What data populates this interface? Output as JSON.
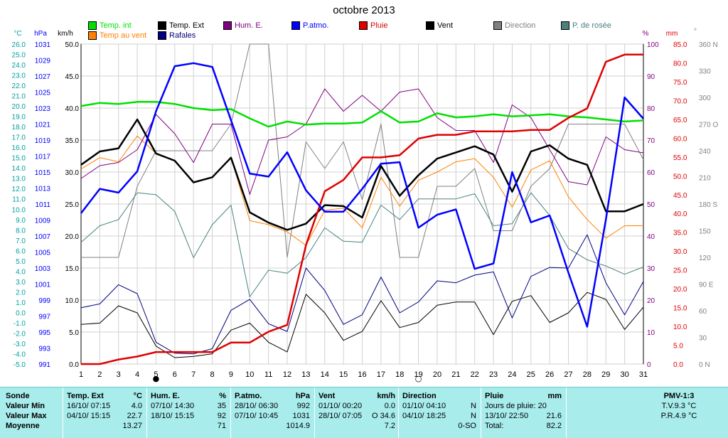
{
  "title": "octobre 2013",
  "axis_units": {
    "temp": "°C",
    "press": "hPa",
    "wind": "km/h",
    "hum": "%",
    "rain": "mm",
    "dir": "°"
  },
  "legend": [
    {
      "label": "Temp. int",
      "color": "#00e000"
    },
    {
      "label": "Temp. Ext",
      "color": "#000000"
    },
    {
      "label": "Hum. E.",
      "color": "#800080"
    },
    {
      "label": "P.atmo.",
      "color": "#0000ff"
    },
    {
      "label": "Pluie",
      "color": "#e00000"
    },
    {
      "label": "Vent",
      "color": "#000000"
    },
    {
      "label": "Direction",
      "color": "#808080"
    },
    {
      "label": "P. de rosée",
      "color": "#4a8080"
    },
    {
      "label": "Temp au vent",
      "color": "#ff8000"
    },
    {
      "label": "Rafales",
      "color": "#000080"
    }
  ],
  "chart_data": {
    "type": "line",
    "title": "octobre 2013",
    "x": [
      1,
      2,
      3,
      4,
      5,
      6,
      7,
      8,
      9,
      10,
      11,
      12,
      13,
      14,
      15,
      16,
      17,
      18,
      19,
      20,
      21,
      22,
      23,
      24,
      25,
      26,
      27,
      28,
      29,
      30,
      31
    ],
    "axes": {
      "temp": {
        "label": "°C",
        "range": [
          -5,
          26
        ],
        "ticks": [
          "26.0",
          "25.0",
          "24.0",
          "23.0",
          "22.0",
          "21.0",
          "20.0",
          "19.0",
          "18.0",
          "17.0",
          "16.0",
          "15.0",
          "14.0",
          "13.0",
          "12.0",
          "11.0",
          "10.0",
          "9.0",
          "8.0",
          "7.0",
          "6.0",
          "5.0",
          "4.0",
          "3.0",
          "2.0",
          "1.0",
          "0.0",
          "-1.0",
          "-2.0",
          "-3.0",
          "-4.0",
          "-5.0"
        ]
      },
      "press": {
        "label": "hPa",
        "range": [
          991,
          1033
        ],
        "ticks": [
          "1031",
          "1029",
          "1027",
          "1025",
          "1023",
          "1021",
          "1019",
          "1017",
          "1015",
          "1013",
          "1011",
          "1009",
          "1007",
          "1005",
          "1003",
          "1001",
          "999",
          "997",
          "995",
          "993",
          "991"
        ]
      },
      "wind": {
        "label": "km/h",
        "range": [
          0,
          50
        ],
        "ticks": [
          "50.0",
          "45.0",
          "40.0",
          "35.0",
          "30.0",
          "25.0",
          "20.0",
          "15.0",
          "10.0",
          "5.0",
          "0.0"
        ]
      },
      "hum": {
        "label": "%",
        "range": [
          0,
          100
        ],
        "ticks": [
          "100",
          "90",
          "80",
          "70",
          "60",
          "50",
          "40",
          "30",
          "20",
          "10",
          "0"
        ]
      },
      "rain": {
        "label": "mm",
        "range": [
          0,
          85
        ],
        "ticks": [
          "85.0",
          "80.0",
          "75.0",
          "70.0",
          "65.0",
          "60.0",
          "55.0",
          "50.0",
          "45.0",
          "40.0",
          "35.0",
          "30.0",
          "25.0",
          "20.0",
          "15.0",
          "10.0",
          "5.0",
          "0.0"
        ]
      },
      "dir": {
        "label": "°",
        "range": [
          0,
          360
        ],
        "ticks": [
          "360 N",
          "330",
          "300",
          "270 O",
          "240",
          "210",
          "180 S",
          "150",
          "120",
          "90 E",
          "60",
          "30",
          "0 N"
        ]
      }
    },
    "moon_markers": [
      {
        "day": 5,
        "symbol": "●"
      },
      {
        "day": 19,
        "symbol": "○"
      }
    ],
    "series": [
      {
        "name": "Temp. int",
        "axis": "temp",
        "color": "#00e000",
        "width": 2.5,
        "values": [
          20.0,
          20.3,
          20.2,
          20.4,
          20.4,
          20.2,
          19.8,
          19.6,
          19.7,
          18.8,
          18.0,
          18.5,
          18.2,
          18.3,
          18.3,
          18.4,
          19.5,
          18.4,
          18.5,
          19.3,
          18.9,
          19.0,
          19.2,
          19.0,
          19.1,
          19.2,
          19.0,
          18.9,
          18.7,
          18.5,
          18.6
        ]
      },
      {
        "name": "Temp. Ext",
        "axis": "temp",
        "color": "#000000",
        "width": 2.5,
        "values": [
          14.3,
          15.6,
          15.9,
          18.7,
          15.4,
          14.7,
          12.6,
          13.1,
          15.0,
          9.7,
          8.7,
          8.0,
          8.6,
          10.4,
          10.3,
          9.2,
          14.2,
          11.3,
          13.3,
          14.9,
          15.5,
          16.1,
          15.3,
          11.7,
          15.6,
          16.2,
          14.9,
          14.3,
          9.8,
          9.8,
          10.5
        ]
      },
      {
        "name": "Temp au vent",
        "axis": "temp",
        "color": "#ff8000",
        "width": 1,
        "values": [
          13.9,
          15.0,
          14.6,
          17.1,
          15.4,
          14.7,
          12.6,
          13.1,
          15.0,
          8.9,
          8.5,
          7.8,
          6.5,
          9.9,
          10.1,
          8.2,
          13.1,
          10.3,
          12.8,
          13.6,
          14.6,
          14.9,
          13.1,
          10.2,
          13.8,
          14.7,
          11.2,
          9.0,
          7.2,
          8.4,
          8.4
        ]
      },
      {
        "name": "P. de rosée",
        "axis": "temp",
        "color": "#4a8080",
        "width": 1,
        "values": [
          6.8,
          8.4,
          9.0,
          11.6,
          11.4,
          9.8,
          5.3,
          8.5,
          10.4,
          1.5,
          4.1,
          3.8,
          5.3,
          8.2,
          6.9,
          6.8,
          10.4,
          9.0,
          11.0,
          11.0,
          11.0,
          11.5,
          8.4,
          8.6,
          11.6,
          9.4,
          6.2,
          5.1,
          4.5,
          3.7,
          4.4
        ]
      },
      {
        "name": "Hum. E.",
        "axis": "hum",
        "color": "#800080",
        "width": 1,
        "values": [
          58,
          62,
          63,
          67,
          78,
          72,
          63,
          75,
          75,
          53,
          70,
          71,
          75,
          86,
          79,
          84,
          79,
          85,
          86,
          77,
          73,
          73,
          63,
          81,
          77,
          67,
          57,
          56,
          71,
          67,
          66
        ]
      },
      {
        "name": "P.atmo.",
        "axis": "press",
        "color": "#0000ff",
        "width": 2.5,
        "values": [
          1010.8,
          1014.0,
          1013.5,
          1016.3,
          1024.2,
          1030.1,
          1030.5,
          1030.0,
          1023.0,
          1016.0,
          1015.6,
          1018.8,
          1013.8,
          1011.0,
          1011.0,
          1014.0,
          1017.3,
          1017.5,
          1008.9,
          1010.6,
          1011.3,
          1003.5,
          1004.2,
          1016.2,
          1009.6,
          1010.5,
          1003.0,
          995.9,
          1010.0,
          1026.0,
          1023.2
        ]
      },
      {
        "name": "Pluie",
        "axis": "rain",
        "color": "#e00000",
        "width": 2.5,
        "values": [
          0.0,
          0.0,
          1.2,
          2.0,
          3.2,
          3.2,
          3.2,
          3.2,
          5.7,
          5.7,
          8.6,
          10.4,
          31.6,
          45.9,
          48.9,
          54.9,
          54.9,
          55.5,
          59.9,
          60.9,
          60.9,
          61.8,
          61.8,
          61.8,
          62.2,
          62.2,
          65.4,
          67.9,
          80.3,
          82.2,
          82.2
        ]
      },
      {
        "name": "Vent",
        "axis": "wind",
        "color": "#000000",
        "width": 1,
        "values": [
          6.2,
          6.4,
          9.1,
          8.0,
          2.8,
          1.0,
          1.2,
          1.6,
          5.3,
          6.4,
          3.4,
          1.9,
          10.9,
          8.0,
          3.7,
          5.1,
          9.9,
          5.7,
          6.5,
          9.2,
          9.7,
          9.7,
          4.6,
          9.8,
          10.7,
          6.5,
          8.0,
          11.2,
          10.1,
          5.4,
          8.9
        ]
      },
      {
        "name": "Rafales",
        "axis": "wind",
        "color": "#000080",
        "width": 1,
        "values": [
          8.8,
          9.4,
          12.4,
          11.0,
          3.4,
          1.7,
          1.6,
          2.4,
          8.4,
          10.1,
          6.3,
          5.1,
          15.0,
          11.5,
          6.2,
          7.7,
          13.6,
          8.0,
          9.7,
          13.0,
          12.7,
          13.9,
          14.4,
          7.2,
          13.7,
          15.1,
          15.0,
          20.2,
          12.7,
          7.7,
          12.9
        ]
      },
      {
        "name": "Direction",
        "axis": "dir",
        "color": "#808080",
        "width": 1,
        "values": [
          120,
          120,
          120,
          200,
          240,
          240,
          240,
          240,
          270,
          360,
          360,
          120,
          250,
          220,
          250,
          185,
          270,
          120,
          120,
          200,
          200,
          220,
          150,
          150,
          200,
          220,
          270,
          270,
          270,
          270,
          230
        ]
      }
    ]
  },
  "stats": {
    "sonde": {
      "header": "Sonde",
      "rows": [
        "Valeur Min",
        "Valeur Max",
        "Moyenne"
      ]
    },
    "temp": {
      "header": "Temp. Ext",
      "unit": "°C",
      "rows": [
        [
          "16/10/ 07:15",
          "4.0"
        ],
        [
          "04/10/ 15:15",
          "22.7"
        ],
        [
          "",
          "13.27"
        ]
      ]
    },
    "hum": {
      "header": "Hum. E.",
      "unit": "%",
      "rows": [
        [
          "07/10/ 14:30",
          "35"
        ],
        [
          "18/10/ 15:15",
          "92"
        ],
        [
          "",
          "71"
        ]
      ]
    },
    "press": {
      "header": "P.atmo.",
      "unit": "hPa",
      "rows": [
        [
          "28/10/ 06:30",
          "992"
        ],
        [
          "07/10/ 10:45",
          "1031"
        ],
        [
          "",
          "1014.9"
        ]
      ]
    },
    "wind": {
      "header": "Vent",
      "unit": "km/h",
      "rows": [
        [
          "01/10/ 00:20",
          "0.0"
        ],
        [
          "28/10/ 07:05",
          "O 34.6"
        ],
        [
          "",
          "7.2"
        ]
      ]
    },
    "dir": {
      "header": "Direction",
      "unit": "",
      "rows": [
        [
          "01/10/ 04:10",
          "N"
        ],
        [
          "04/10/ 18:25",
          "N"
        ],
        [
          "",
          "0-SO"
        ]
      ]
    },
    "rain": {
      "header": "Pluie",
      "unit": "mm",
      "rows": [
        [
          "Jours de pluie: 20",
          ""
        ],
        [
          "13/10/ 22:50",
          "21.6"
        ],
        [
          "Total:",
          "82.2"
        ]
      ]
    },
    "pmv": {
      "header": "PMV-1:3",
      "rows": [
        "T.V.9.3 °C",
        "P.R.4.9 °C"
      ]
    }
  }
}
